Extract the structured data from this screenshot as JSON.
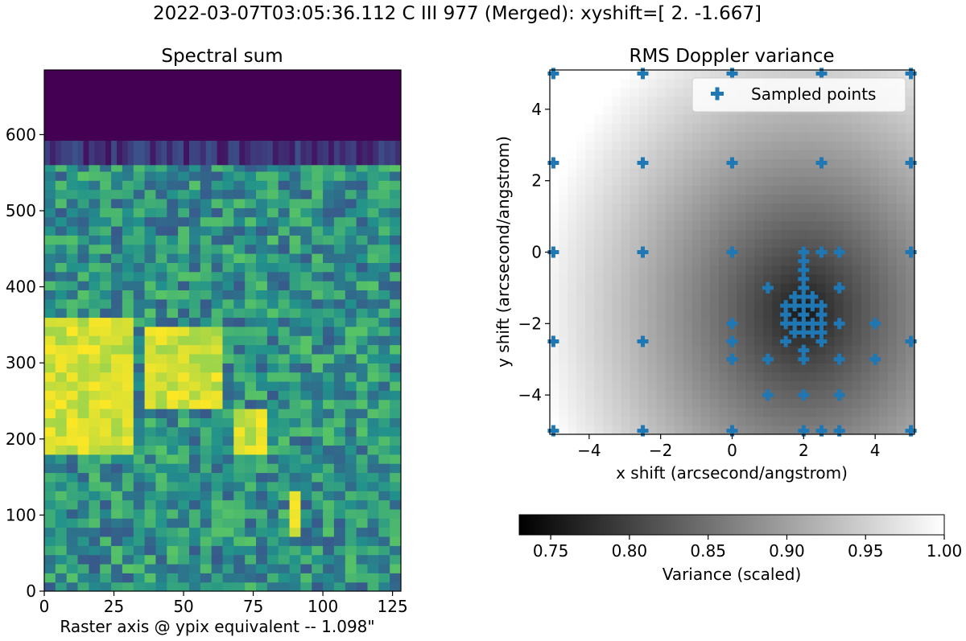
{
  "figure": {
    "suptitle": "2022-03-07T03:05:36.112 C III 977 (Merged): xyshift=[ 2.    -1.667]"
  },
  "chart_data": [
    {
      "type": "heatmap",
      "title": "Spectral sum",
      "xlabel": "Raster axis @ ypix equivalent -- 1.098\"",
      "ylabel": "",
      "xlim": [
        0,
        128
      ],
      "ylim": [
        0,
        685
      ],
      "xticks": [
        0,
        25,
        50,
        75,
        100,
        125
      ],
      "yticks": [
        0,
        100,
        200,
        300,
        400,
        500,
        600
      ],
      "colormap": "viridis",
      "no_data_above_y": 592,
      "sparse_band_y": [
        560,
        592
      ],
      "bright_regions": [
        {
          "label": "large bright patch",
          "x": [
            0,
            30
          ],
          "y": [
            180,
            360
          ]
        },
        {
          "label": "bright diagonal filament",
          "x": [
            35,
            62
          ],
          "y": [
            230,
            340
          ]
        },
        {
          "label": "bright blob",
          "x": [
            65,
            78
          ],
          "y": [
            170,
            230
          ]
        },
        {
          "label": "bright streak",
          "x": [
            86,
            92
          ],
          "y": [
            70,
            130
          ]
        }
      ]
    },
    {
      "type": "heatmap",
      "title": "RMS Doppler variance",
      "xlabel": "x shift (arcsecond/angstrom)",
      "ylabel": "y shift (arcsecond/angstrom)",
      "xlim": [
        -5.1,
        5.1
      ],
      "ylim": [
        -5.1,
        5.1
      ],
      "xticks": [
        -4,
        -2,
        0,
        2,
        4
      ],
      "yticks": [
        -4,
        -2,
        0,
        2,
        4
      ],
      "colormap": "gray",
      "minimum": {
        "x": 2.0,
        "y": -1.667
      },
      "legend": {
        "label": "Sampled points",
        "marker": "plus",
        "color": "#1f77b4",
        "loc": "upper-right"
      },
      "colorbar": {
        "label": "Variance (scaled)",
        "range": [
          0.73,
          1.0
        ],
        "ticks": [
          "0.75",
          "0.80",
          "0.85",
          "0.90",
          "0.95",
          "1.00"
        ],
        "orientation": "horizontal"
      },
      "sampled_points": [
        [
          -5,
          5
        ],
        [
          -2.5,
          5
        ],
        [
          0,
          5
        ],
        [
          2.5,
          5
        ],
        [
          5,
          5
        ],
        [
          -5,
          2.5
        ],
        [
          -2.5,
          2.5
        ],
        [
          0,
          2.5
        ],
        [
          2.5,
          2.5
        ],
        [
          5,
          2.5
        ],
        [
          -5,
          0
        ],
        [
          -2.5,
          0
        ],
        [
          0,
          0
        ],
        [
          2,
          0
        ],
        [
          2.5,
          0
        ],
        [
          3,
          0
        ],
        [
          5,
          0
        ],
        [
          -5,
          -2.5
        ],
        [
          -2.5,
          -2.5
        ],
        [
          0,
          -2.5
        ],
        [
          5,
          -2.5
        ],
        [
          -5,
          -5
        ],
        [
          -2.5,
          -5
        ],
        [
          0,
          -5
        ],
        [
          2,
          -5
        ],
        [
          2.5,
          -5
        ],
        [
          3,
          -5
        ],
        [
          5,
          -5
        ],
        [
          1,
          -1
        ],
        [
          3,
          -1
        ],
        [
          0,
          -2
        ],
        [
          3,
          -2
        ],
        [
          4,
          -2
        ],
        [
          0,
          -3
        ],
        [
          3,
          -3
        ],
        [
          1,
          -4
        ],
        [
          2,
          -4
        ],
        [
          3,
          -4
        ],
        [
          4,
          -3
        ],
        [
          1,
          -3
        ],
        [
          2,
          -3
        ],
        [
          2,
          -0.5
        ],
        [
          2,
          -0.25
        ],
        [
          2,
          -0.75
        ],
        [
          2,
          -1.25
        ],
        [
          2,
          -2.25
        ],
        [
          2,
          -2.75
        ],
        [
          1.5,
          -1.5
        ],
        [
          1.75,
          -1.5
        ],
        [
          2,
          -1.5
        ],
        [
          2.25,
          -1.5
        ],
        [
          2.5,
          -1.5
        ],
        [
          1.5,
          -1.75
        ],
        [
          2,
          -1.75
        ],
        [
          2.5,
          -1.75
        ],
        [
          1.5,
          -2
        ],
        [
          1.75,
          -2
        ],
        [
          2,
          -2
        ],
        [
          2.25,
          -2
        ],
        [
          2.5,
          -2
        ],
        [
          1.5,
          -2.5
        ],
        [
          2.5,
          -2.5
        ],
        [
          2.5,
          -2.25
        ],
        [
          1.75,
          -2.25
        ],
        [
          2.25,
          -2.25
        ],
        [
          1.75,
          -1.25
        ],
        [
          2.25,
          -1.25
        ],
        [
          2,
          -1
        ]
      ]
    }
  ]
}
